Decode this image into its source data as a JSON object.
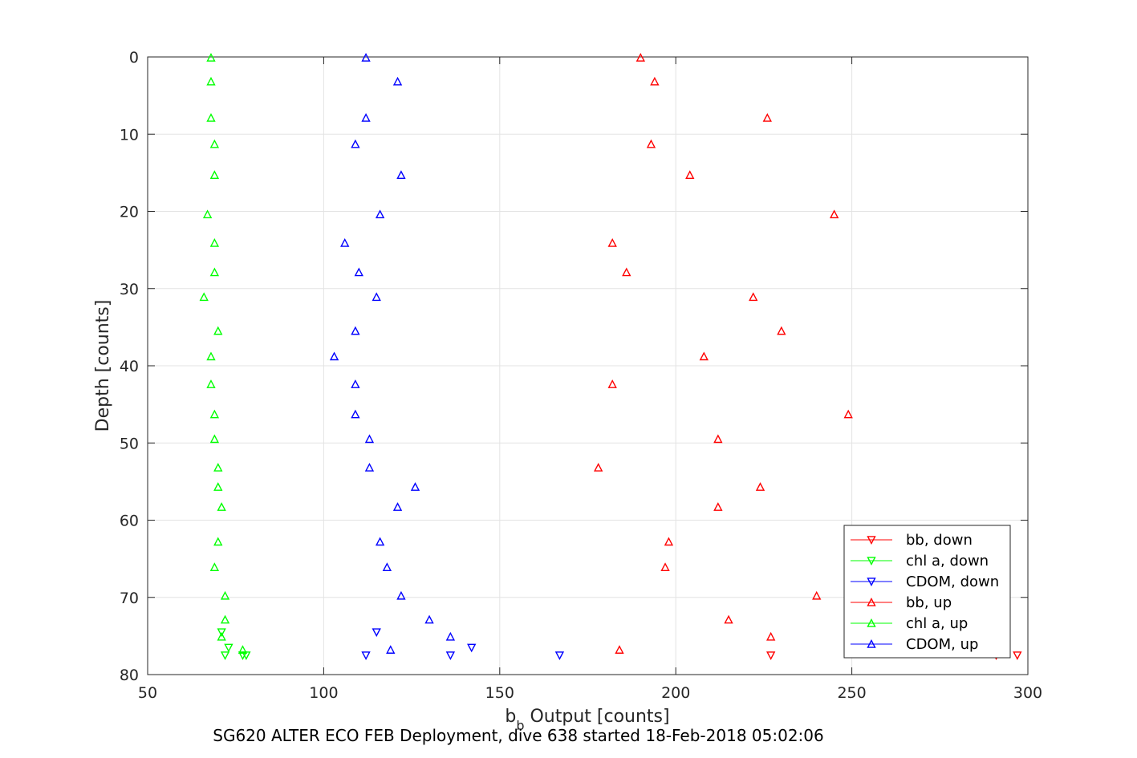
{
  "chart_data": {
    "type": "scatter",
    "title": "",
    "caption": "SG620 ALTER ECO FEB Deployment, dive 638 started 18-Feb-2018 05:02:06",
    "xlabel_main": "b",
    "xlabel_sub": "b",
    "xlabel_rest": " Output [counts]",
    "ylabel": "Depth [counts]",
    "xlim": [
      50,
      300
    ],
    "ylim": [
      0,
      80
    ],
    "y_reversed": true,
    "xticks": [
      "50",
      "100",
      "150",
      "200",
      "250",
      "300"
    ],
    "yticks": [
      "0",
      "10",
      "20",
      "30",
      "40",
      "50",
      "60",
      "70",
      "80"
    ],
    "grid": true,
    "legend_position": "bottom-right",
    "colors": {
      "red": "#ff0000",
      "green": "#00ff00",
      "blue": "#0000ff"
    },
    "series": [
      {
        "name": "bb, down",
        "color": "#ff0000",
        "marker": "triangle-down",
        "points": [
          [
            297,
            77.5
          ],
          [
            291,
            77.5
          ],
          [
            227,
            77.5
          ]
        ]
      },
      {
        "name": "chl a, down",
        "color": "#00ff00",
        "marker": "triangle-down",
        "points": [
          [
            78,
            77.5
          ],
          [
            77,
            77.5
          ],
          [
            72,
            77.5
          ],
          [
            73,
            76.5
          ],
          [
            71,
            74.5
          ]
        ]
      },
      {
        "name": "CDOM, down",
        "color": "#0000ff",
        "marker": "triangle-down",
        "points": [
          [
            167,
            77.5
          ],
          [
            136,
            77.5
          ],
          [
            112,
            77.5
          ],
          [
            142,
            76.5
          ],
          [
            115,
            74.5
          ]
        ]
      },
      {
        "name": "bb, up",
        "color": "#ff0000",
        "marker": "triangle-up",
        "points": [
          [
            190,
            0.1
          ],
          [
            194,
            3.2
          ],
          [
            226,
            7.9
          ],
          [
            193,
            11.3
          ],
          [
            204,
            15.3
          ],
          [
            245,
            20.4
          ],
          [
            182,
            24.1
          ],
          [
            186,
            27.9
          ],
          [
            222,
            31.1
          ],
          [
            230,
            35.5
          ],
          [
            208,
            38.8
          ],
          [
            182,
            42.4
          ],
          [
            249,
            46.3
          ],
          [
            212,
            49.5
          ],
          [
            178,
            53.2
          ],
          [
            224,
            55.7
          ],
          [
            212,
            58.3
          ],
          [
            198,
            62.8
          ],
          [
            197,
            66.1
          ],
          [
            240,
            69.8
          ],
          [
            215,
            72.9
          ],
          [
            227,
            75.1
          ],
          [
            184,
            76.8
          ]
        ]
      },
      {
        "name": "chl a, up",
        "color": "#00ff00",
        "marker": "triangle-up",
        "points": [
          [
            68,
            0.1
          ],
          [
            68,
            3.2
          ],
          [
            68,
            7.9
          ],
          [
            69,
            11.3
          ],
          [
            69,
            15.3
          ],
          [
            67,
            20.4
          ],
          [
            69,
            24.1
          ],
          [
            69,
            27.9
          ],
          [
            66,
            31.1
          ],
          [
            70,
            35.5
          ],
          [
            68,
            38.8
          ],
          [
            68,
            42.4
          ],
          [
            69,
            46.3
          ],
          [
            69,
            49.5
          ],
          [
            70,
            53.2
          ],
          [
            70,
            55.7
          ],
          [
            71,
            58.3
          ],
          [
            70,
            62.8
          ],
          [
            69,
            66.1
          ],
          [
            72,
            69.8
          ],
          [
            72,
            72.9
          ],
          [
            71,
            75.1
          ],
          [
            77,
            76.8
          ]
        ]
      },
      {
        "name": "CDOM, up",
        "color": "#0000ff",
        "marker": "triangle-up",
        "points": [
          [
            112,
            0.1
          ],
          [
            121,
            3.2
          ],
          [
            112,
            7.9
          ],
          [
            109,
            11.3
          ],
          [
            122,
            15.3
          ],
          [
            116,
            20.4
          ],
          [
            106,
            24.1
          ],
          [
            110,
            27.9
          ],
          [
            115,
            31.1
          ],
          [
            109,
            35.5
          ],
          [
            103,
            38.8
          ],
          [
            109,
            42.4
          ],
          [
            109,
            46.3
          ],
          [
            113,
            49.5
          ],
          [
            113,
            53.2
          ],
          [
            126,
            55.7
          ],
          [
            121,
            58.3
          ],
          [
            116,
            62.8
          ],
          [
            118,
            66.1
          ],
          [
            122,
            69.8
          ],
          [
            130,
            72.9
          ],
          [
            136,
            75.1
          ],
          [
            119,
            76.8
          ]
        ]
      }
    ]
  }
}
